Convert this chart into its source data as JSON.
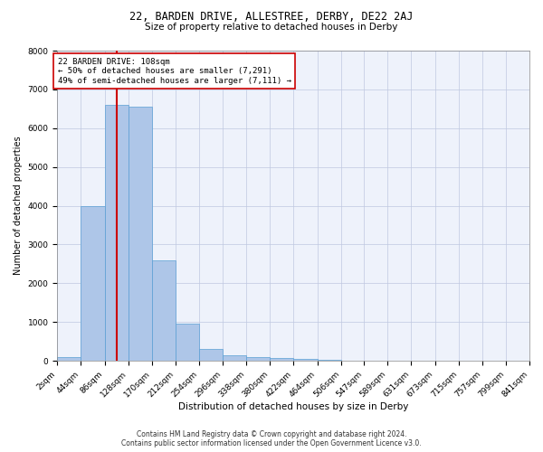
{
  "title_line1": "22, BARDEN DRIVE, ALLESTREE, DERBY, DE22 2AJ",
  "title_line2": "Size of property relative to detached houses in Derby",
  "xlabel": "Distribution of detached houses by size in Derby",
  "ylabel": "Number of detached properties",
  "bar_color": "#aec6e8",
  "bar_edge_color": "#5a9fd4",
  "grid_color": "#c0c8e0",
  "background_color": "#eef2fb",
  "bin_edges": [
    2,
    44,
    86,
    128,
    170,
    212,
    254,
    296,
    338,
    380,
    422,
    464,
    506,
    547,
    589,
    631,
    673,
    715,
    757,
    799,
    841
  ],
  "bar_heights": [
    100,
    4000,
    6600,
    6550,
    2600,
    950,
    300,
    150,
    100,
    75,
    50,
    20,
    10,
    8,
    5,
    4,
    3,
    2,
    2,
    1
  ],
  "property_size": 108,
  "vline_color": "#cc0000",
  "annotation_text": "22 BARDEN DRIVE: 108sqm\n← 50% of detached houses are smaller (7,291)\n49% of semi-detached houses are larger (7,111) →",
  "annotation_box_color": "#ffffff",
  "annotation_box_edge_color": "#cc0000",
  "annotation_fontsize": 6.5,
  "ylim": [
    0,
    8000
  ],
  "yticks": [
    0,
    1000,
    2000,
    3000,
    4000,
    5000,
    6000,
    7000,
    8000
  ],
  "footnote": "Contains HM Land Registry data © Crown copyright and database right 2024.\nContains public sector information licensed under the Open Government Licence v3.0.",
  "title1_fontsize": 8.5,
  "title2_fontsize": 7.5,
  "xlabel_fontsize": 7.5,
  "ylabel_fontsize": 7,
  "tick_fontsize": 6.5,
  "footnote_fontsize": 5.5
}
